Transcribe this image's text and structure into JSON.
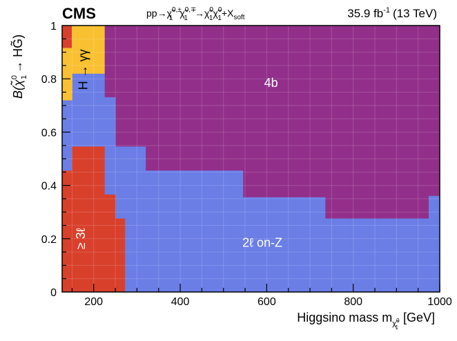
{
  "chart_data": {
    "type": "heatmap",
    "experiment": "CMS",
    "process": "pp→χ̃₁⁰'±χ̃₁⁰'∓→χ̃₁⁰χ̃₁⁰+X_soft",
    "process_parts": {
      "prefix": "pp→",
      "chi": "χ̃",
      "sub1": "1",
      "sup1": "0,±",
      "sup2": "0,∓",
      "sup0": "0",
      "plus_x": "+X",
      "soft": "soft"
    },
    "luminosity": {
      "value": "35.9 fb",
      "exponent": "-1",
      "energy": "(13 TeV)"
    },
    "xlabel": {
      "text": "Higgsino mass m",
      "subscript": "χ̃",
      "subscript_index": "1",
      "subscript_sup": "0",
      "unit": "[GeV]"
    },
    "ylabel": {
      "text": "B(χ̃",
      "sub": "1",
      "sup": "0",
      "rest": "→ HG̃)"
    },
    "xlim": [
      127,
      1000
    ],
    "ylim": [
      0,
      1
    ],
    "x_ticks": [
      200,
      400,
      600,
      800,
      1000
    ],
    "y_ticks": [
      0,
      0.2,
      0.4,
      0.6,
      0.8,
      1
    ],
    "grid": true,
    "colors": {
      "four_b": "#922f8a",
      "two_l_on_z": "#6a7ee6",
      "three_l": "#d8402c",
      "h_gamma_gamma": "#f9c031"
    },
    "regions": [
      {
        "name": "4b",
        "label": "4b",
        "color": "four_b",
        "polygon": [
          [
            150,
            1
          ],
          [
            1000,
            1
          ],
          [
            1000,
            0.36
          ],
          [
            975,
            0.36
          ],
          [
            975,
            0.275
          ],
          [
            735,
            0.275
          ],
          [
            735,
            0.355
          ],
          [
            545,
            0.355
          ],
          [
            545,
            0.455
          ],
          [
            320,
            0.455
          ],
          [
            320,
            0.545
          ],
          [
            250,
            0.545
          ],
          [
            250,
            0.73
          ],
          [
            225,
            0.73
          ],
          [
            225,
            0.82
          ],
          [
            150,
            0.82
          ]
        ]
      },
      {
        "name": "2l-on-Z",
        "label": "2ℓ on-Z",
        "color": "two_l_on_z",
        "polygon": [
          [
            127,
            0.72
          ],
          [
            150,
            0.72
          ],
          [
            150,
            0.82
          ],
          [
            225,
            0.82
          ],
          [
            225,
            0.73
          ],
          [
            250,
            0.73
          ],
          [
            250,
            0.545
          ],
          [
            320,
            0.545
          ],
          [
            320,
            0.455
          ],
          [
            545,
            0.455
          ],
          [
            545,
            0.355
          ],
          [
            735,
            0.355
          ],
          [
            735,
            0.275
          ],
          [
            975,
            0.275
          ],
          [
            975,
            0.36
          ],
          [
            1000,
            0.36
          ],
          [
            1000,
            0
          ],
          [
            272,
            0
          ],
          [
            272,
            0.275
          ],
          [
            250,
            0.275
          ],
          [
            250,
            0.365
          ],
          [
            225,
            0.365
          ],
          [
            225,
            0.545
          ],
          [
            150,
            0.545
          ],
          [
            150,
            0.455
          ],
          [
            127,
            0.455
          ]
        ]
      },
      {
        "name": "3l",
        "label": "≥ 3ℓ",
        "color": "three_l",
        "polygon": [
          [
            127,
            0
          ],
          [
            272,
            0
          ],
          [
            272,
            0.275
          ],
          [
            250,
            0.275
          ],
          [
            250,
            0.365
          ],
          [
            225,
            0.365
          ],
          [
            225,
            0.545
          ],
          [
            150,
            0.545
          ],
          [
            150,
            0.455
          ],
          [
            127,
            0.455
          ]
        ]
      },
      {
        "name": "3l-corner",
        "label": "",
        "color": "three_l",
        "polygon": [
          [
            127,
            0.915
          ],
          [
            150,
            0.915
          ],
          [
            150,
            1
          ],
          [
            127,
            1
          ]
        ]
      },
      {
        "name": "H-to-gamma-gamma",
        "label": "H → γγ",
        "color": "h_gamma_gamma",
        "polygon": [
          [
            150,
            1
          ],
          [
            225,
            1
          ],
          [
            225,
            0.82
          ],
          [
            150,
            0.82
          ],
          [
            150,
            0.72
          ],
          [
            127,
            0.72
          ],
          [
            127,
            0.915
          ],
          [
            150,
            0.915
          ]
        ]
      }
    ],
    "region_label_positions": {
      "four_b": {
        "x": 610,
        "y": 0.77
      },
      "two_l_on_z": {
        "x": 590,
        "y": 0.17
      },
      "three_l": {
        "x": 180,
        "y": 0.2
      },
      "h_gamma_gamma": {
        "x": 185,
        "y": 0.835
      }
    }
  }
}
